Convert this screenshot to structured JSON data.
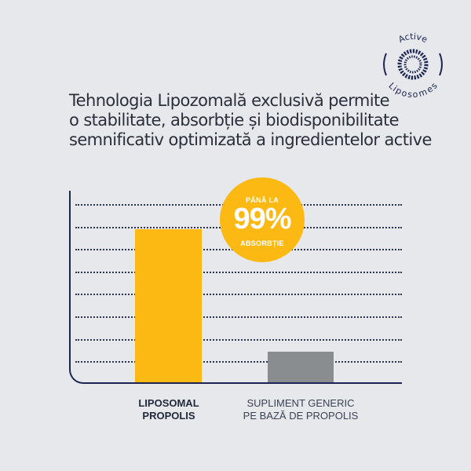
{
  "logo": {
    "top_text": "Active",
    "bottom_text": "Liposomes",
    "icon": "liposome-icon"
  },
  "headline": {
    "lines": [
      "Tehnologia Lipozomală exclusivă permite",
      "o stabilitate, absorbție și biodisponibilitate",
      "semnificativ optimizată a ingredientelor active"
    ]
  },
  "badge": {
    "pre": "PÂNĂ LA",
    "value": "99%",
    "post": "ABSORBȚIE"
  },
  "colors": {
    "background": "#e6e8ec",
    "accent": "#fdb913",
    "generic": "#8a8d8f",
    "axis": "#1c2650"
  },
  "chart_data": {
    "type": "bar",
    "title": "Tehnologia Lipozomală exclusivă permite o stabilitate, absorbție și biodisponibilitate semnificativ optimizată a ingredientelor active",
    "categories": [
      "LIPOSOMAL PROPOLIS",
      "SUPLIMENT GENERIC PE BAZĂ DE PROPOLIS"
    ],
    "category_lines": [
      [
        "LIPOSOMAL",
        "PROPOLIS"
      ],
      [
        "SUPLIMENT GENERIC",
        "PE BAZĂ DE PROPOLIS"
      ]
    ],
    "values": [
      99,
      20
    ],
    "annotation": "PÂNĂ LA 99% ABSORBȚIE",
    "xlabel": "",
    "ylabel": "",
    "ylim": [
      0,
      110
    ],
    "grid": true,
    "gridline_count": 8,
    "legend": null,
    "bar_colors": [
      "#fdb913",
      "#8a8d8f"
    ]
  }
}
